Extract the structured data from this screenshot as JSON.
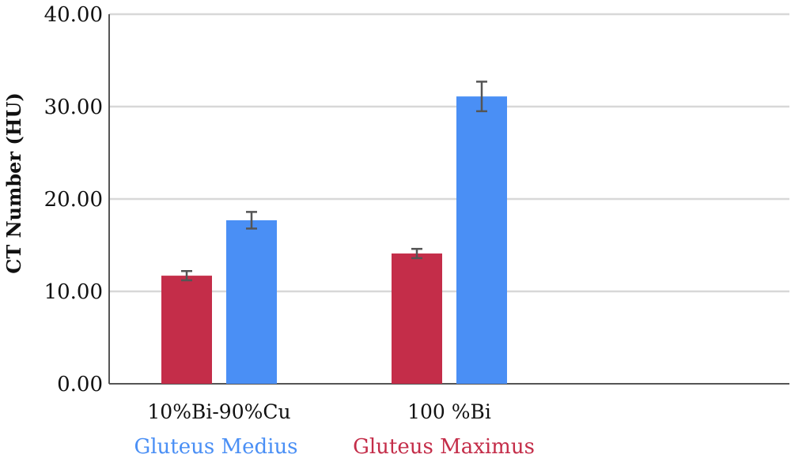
{
  "chart_data": {
    "type": "bar",
    "title": "",
    "xlabel": "",
    "ylabel": "CT Number (HU)",
    "ylim": [
      0,
      40
    ],
    "yticks": [
      "0.00",
      "10.00",
      "20.00",
      "30.00",
      "40.00"
    ],
    "ytick_values": [
      0,
      10,
      20,
      30,
      40
    ],
    "grid": true,
    "legend_position": "bottom",
    "categories": [
      "10%Bi-90%Cu",
      "100 %Bi"
    ],
    "series": [
      {
        "name": "Gluteus Maximus",
        "color": "#c42d49",
        "values": [
          11.7,
          14.1
        ],
        "error": [
          0.5,
          0.5
        ]
      },
      {
        "name": "Gluteus Medius",
        "color": "#4a8ff5",
        "values": [
          17.7,
          31.1
        ],
        "error": [
          0.9,
          1.6
        ]
      }
    ],
    "legend": [
      {
        "name": "Gluteus Medius",
        "color": "#4a8ff5"
      },
      {
        "name": "Gluteus Maximus",
        "color": "#c42d49"
      }
    ]
  }
}
